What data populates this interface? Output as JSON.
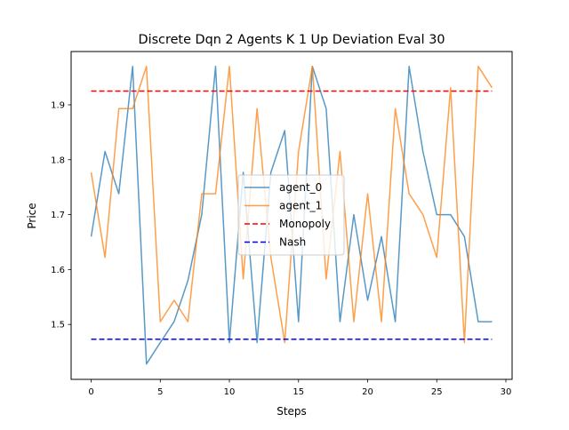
{
  "chart_data": {
    "type": "line",
    "title": "Discrete Dqn 2 Agents K 1 Up Deviation Eval 30",
    "xlabel": "Steps",
    "ylabel": "Price",
    "xlim": [
      -1.45,
      30.45
    ],
    "ylim": [
      1.4,
      1.997
    ],
    "x_ticks": [
      0,
      5,
      10,
      15,
      20,
      25,
      30
    ],
    "y_ticks": [
      1.5,
      1.6,
      1.7,
      1.8,
      1.9
    ],
    "x_tick_labels": [
      "0",
      "5",
      "10",
      "15",
      "20",
      "25",
      "30"
    ],
    "y_tick_labels": [
      "1.5",
      "1.6",
      "1.7",
      "1.8",
      "1.9"
    ],
    "grid": false,
    "legend_position": "center",
    "x": [
      0,
      1,
      2,
      3,
      4,
      5,
      6,
      7,
      8,
      9,
      10,
      11,
      12,
      13,
      14,
      15,
      16,
      17,
      18,
      19,
      20,
      21,
      22,
      23,
      24,
      25,
      26,
      27,
      28,
      29
    ],
    "series": [
      {
        "name": "agent_0",
        "color": "#1f77b4",
        "style": "solid",
        "values": [
          1.66,
          1.815,
          1.738,
          1.97,
          1.428,
          1.467,
          1.505,
          1.58,
          1.7,
          1.97,
          1.467,
          1.777,
          1.467,
          1.777,
          1.853,
          1.505,
          1.97,
          1.893,
          1.505,
          1.7,
          1.544,
          1.66,
          1.505,
          1.97,
          1.815,
          1.7,
          1.7,
          1.66,
          1.505,
          1.505
        ]
      },
      {
        "name": "agent_1",
        "color": "#ff7f0e",
        "style": "solid",
        "values": [
          1.777,
          1.622,
          1.893,
          1.893,
          1.97,
          1.505,
          1.544,
          1.505,
          1.738,
          1.738,
          1.97,
          1.583,
          1.893,
          1.622,
          1.467,
          1.815,
          1.97,
          1.583,
          1.815,
          1.505,
          1.738,
          1.505,
          1.893,
          1.738,
          1.7,
          1.622,
          1.931,
          1.467,
          1.97,
          1.931
        ]
      },
      {
        "name": "Monopoly",
        "color": "#ff0000",
        "style": "dashed",
        "constant": 1.925
      },
      {
        "name": "Nash",
        "color": "#0000ff",
        "style": "dashed",
        "constant": 1.473
      }
    ]
  }
}
